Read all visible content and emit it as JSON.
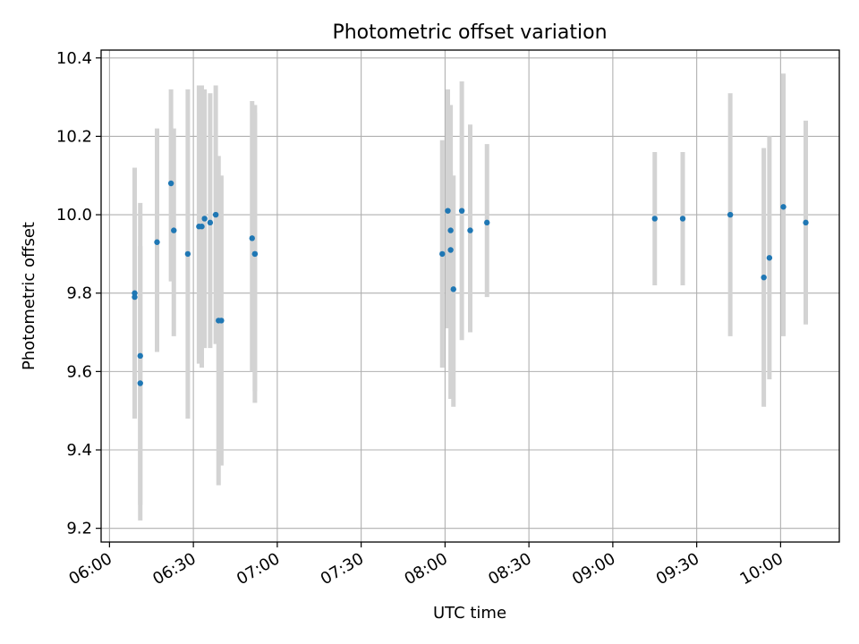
{
  "chart_data": {
    "type": "scatter",
    "title": "Photometric offset variation",
    "xlabel": "UTC time",
    "ylabel": "Photometric offset",
    "xlim": [
      "05:57",
      "10:21"
    ],
    "ylim": [
      9.165,
      10.42
    ],
    "grid": true,
    "x_ticks": [
      "06:00",
      "06:30",
      "07:00",
      "07:30",
      "08:00",
      "08:30",
      "09:00",
      "09:30",
      "10:00"
    ],
    "y_ticks": [
      9.2,
      9.4,
      9.6,
      9.8,
      10.0,
      10.2,
      10.4
    ],
    "y_tick_labels": [
      "9.2",
      "9.4",
      "9.6",
      "9.8",
      "10.0",
      "10.2",
      "10.4"
    ],
    "marker_color": "#1f77b4",
    "errorbar_color": "#d3d3d3",
    "series": [
      {
        "points": [
          {
            "x": "06:09",
            "y": 9.8,
            "lo": 9.48,
            "hi": 10.12
          },
          {
            "x": "06:09",
            "y": 9.79,
            "lo": 9.48,
            "hi": 10.1
          },
          {
            "x": "06:11",
            "y": 9.57,
            "lo": 9.22,
            "hi": 9.92
          },
          {
            "x": "06:11",
            "y": 9.64,
            "lo": 9.26,
            "hi": 10.03
          },
          {
            "x": "06:17",
            "y": 9.93,
            "lo": 9.65,
            "hi": 10.22
          },
          {
            "x": "06:22",
            "y": 10.08,
            "lo": 9.83,
            "hi": 10.32
          },
          {
            "x": "06:23",
            "y": 9.96,
            "lo": 9.69,
            "hi": 10.22
          },
          {
            "x": "06:28",
            "y": 9.9,
            "lo": 9.48,
            "hi": 10.32
          },
          {
            "x": "06:32",
            "y": 9.97,
            "lo": 9.62,
            "hi": 10.33
          },
          {
            "x": "06:33",
            "y": 9.97,
            "lo": 9.61,
            "hi": 10.33
          },
          {
            "x": "06:34",
            "y": 9.99,
            "lo": 9.66,
            "hi": 10.32
          },
          {
            "x": "06:36",
            "y": 9.98,
            "lo": 9.66,
            "hi": 10.31
          },
          {
            "x": "06:38",
            "y": 10.0,
            "lo": 9.67,
            "hi": 10.33
          },
          {
            "x": "06:39",
            "y": 9.73,
            "lo": 9.31,
            "hi": 10.15
          },
          {
            "x": "06:40",
            "y": 9.73,
            "lo": 9.36,
            "hi": 10.1
          },
          {
            "x": "06:51",
            "y": 9.94,
            "lo": 9.6,
            "hi": 10.29
          },
          {
            "x": "06:52",
            "y": 9.9,
            "lo": 9.52,
            "hi": 10.28
          },
          {
            "x": "06:52",
            "y": 9.9,
            "lo": 9.55,
            "hi": 10.26
          },
          {
            "x": "07:59",
            "y": 9.9,
            "lo": 9.61,
            "hi": 10.19
          },
          {
            "x": "08:01",
            "y": 10.01,
            "lo": 9.71,
            "hi": 10.32
          },
          {
            "x": "08:02",
            "y": 9.91,
            "lo": 9.53,
            "hi": 10.28
          },
          {
            "x": "08:02",
            "y": 9.96,
            "lo": 9.81,
            "hi": 10.11
          },
          {
            "x": "08:03",
            "y": 9.81,
            "lo": 9.51,
            "hi": 10.1
          },
          {
            "x": "08:06",
            "y": 10.01,
            "lo": 9.68,
            "hi": 10.34
          },
          {
            "x": "08:09",
            "y": 9.96,
            "lo": 9.7,
            "hi": 10.23
          },
          {
            "x": "08:15",
            "y": 9.98,
            "lo": 9.79,
            "hi": 10.18
          },
          {
            "x": "09:15",
            "y": 9.99,
            "lo": 9.82,
            "hi": 10.16
          },
          {
            "x": "09:25",
            "y": 9.99,
            "lo": 9.82,
            "hi": 10.16
          },
          {
            "x": "09:42",
            "y": 10.0,
            "lo": 9.69,
            "hi": 10.31
          },
          {
            "x": "09:54",
            "y": 9.84,
            "lo": 9.51,
            "hi": 10.17
          },
          {
            "x": "09:56",
            "y": 9.89,
            "lo": 9.58,
            "hi": 10.2
          },
          {
            "x": "10:01",
            "y": 10.02,
            "lo": 9.69,
            "hi": 10.36
          },
          {
            "x": "10:09",
            "y": 9.98,
            "lo": 9.72,
            "hi": 10.24
          }
        ]
      }
    ]
  }
}
